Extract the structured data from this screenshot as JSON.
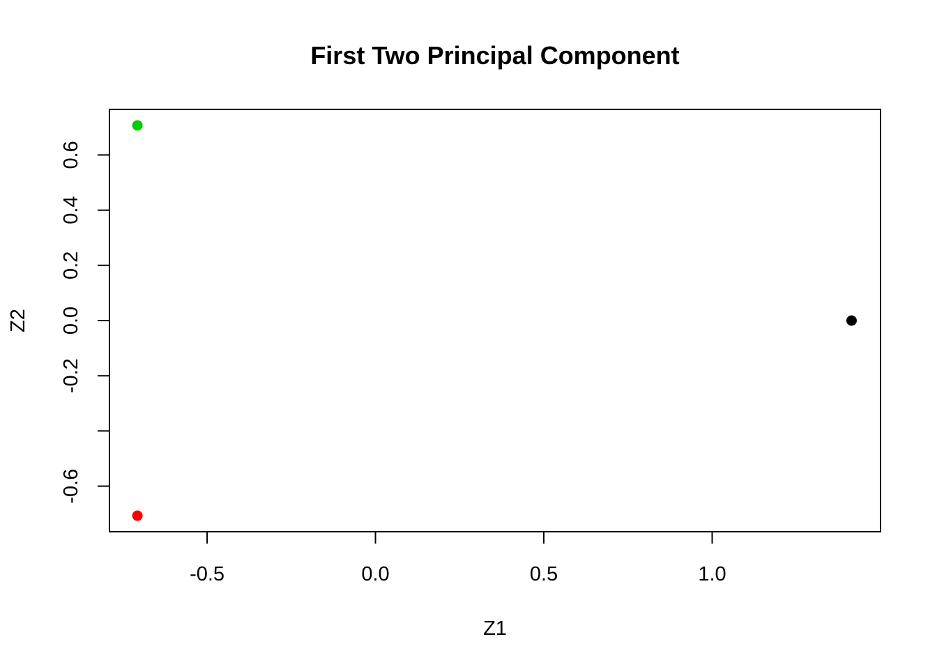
{
  "chart_data": {
    "type": "scatter",
    "title": "First Two Principal Component",
    "xlabel": "Z1",
    "ylabel": "Z2",
    "xlim": [
      -0.79,
      1.5
    ],
    "ylim": [
      -0.765,
      0.765
    ],
    "xticks": [
      -0.5,
      0.0,
      0.5,
      1.0
    ],
    "xtick_labels": [
      "-0.5",
      "0.0",
      "0.5",
      "1.0"
    ],
    "yticks": [
      -0.6,
      -0.4,
      -0.2,
      0.0,
      0.2,
      0.4,
      0.6
    ],
    "ytick_labels": [
      "-0.6",
      "",
      "-0.2",
      "0.0",
      "0.2",
      "0.4",
      "0.6"
    ],
    "grid": false,
    "points": [
      {
        "x": 1.414,
        "y": 0.0,
        "color": "#000000"
      },
      {
        "x": -0.707,
        "y": -0.707,
        "color": "#ff0000"
      },
      {
        "x": -0.707,
        "y": 0.707,
        "color": "#00cd00"
      }
    ]
  }
}
